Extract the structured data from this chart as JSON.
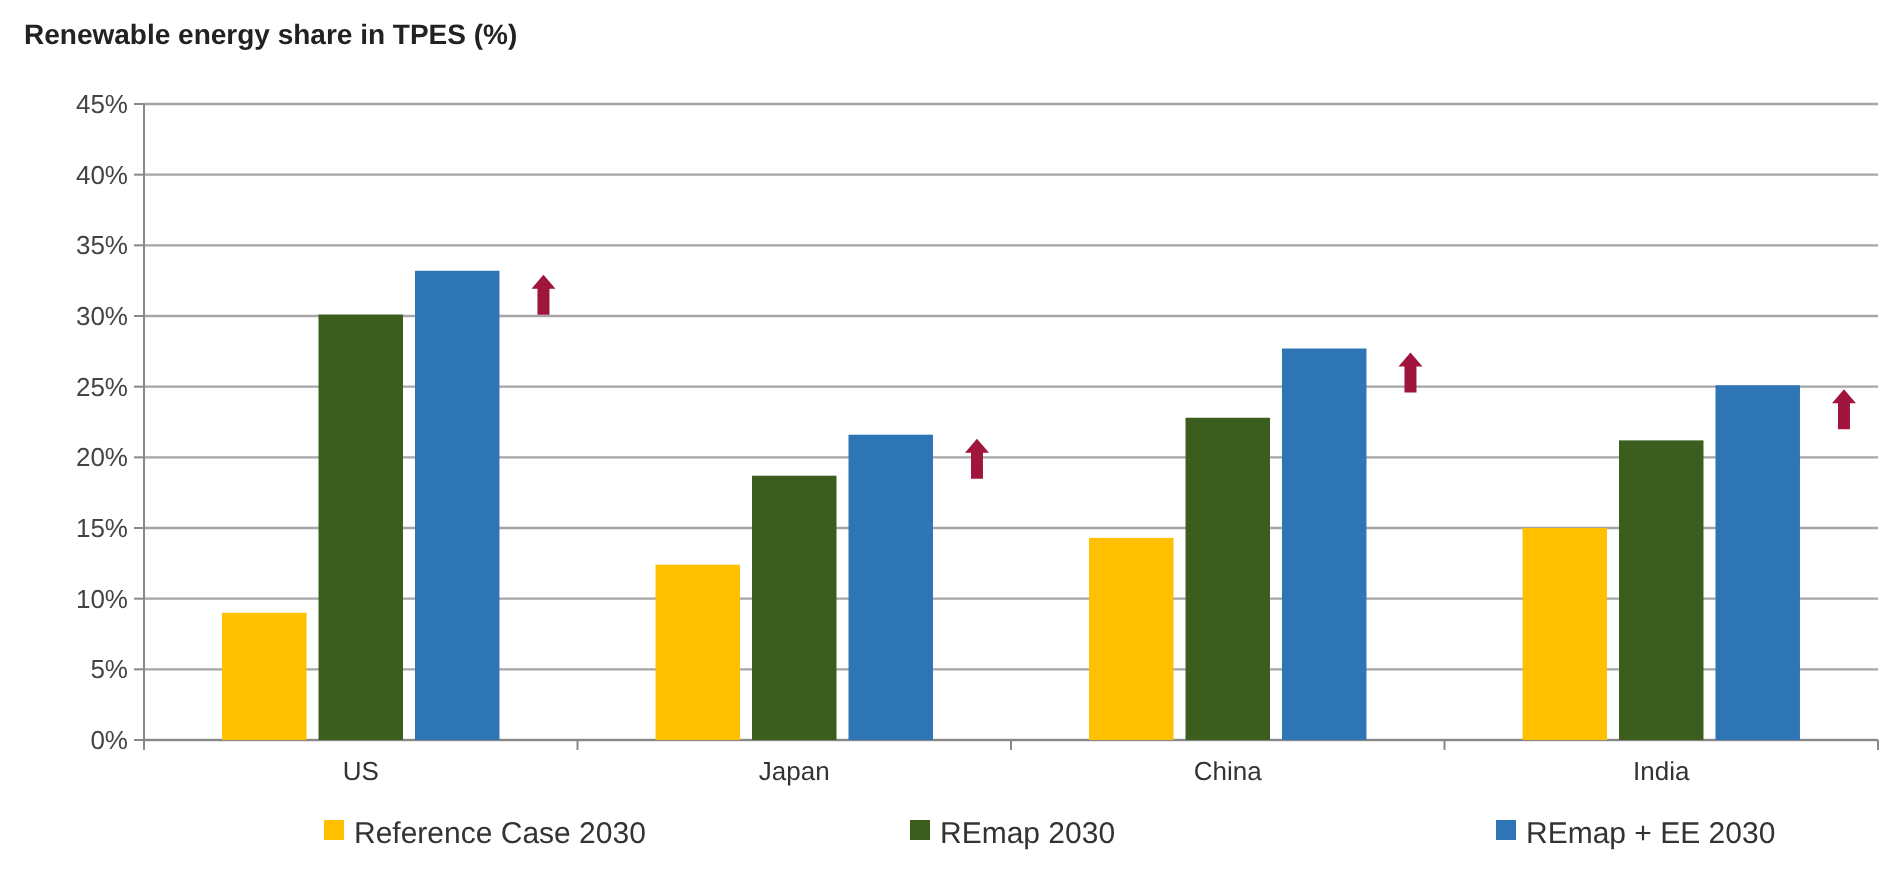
{
  "chart_data": {
    "type": "bar",
    "title": "Renewable energy share in TPES (%)",
    "categories": [
      "US",
      "Japan",
      "China",
      "India"
    ],
    "series": [
      {
        "name": "Reference Case 2030",
        "color": "#ffc000",
        "values": [
          9.0,
          12.4,
          14.3,
          15.0
        ]
      },
      {
        "name": "REmap 2030",
        "color": "#3b5e1f",
        "values": [
          30.1,
          18.7,
          22.8,
          21.2
        ]
      },
      {
        "name": "REmap + EE 2030",
        "color": "#2e75b6",
        "values": [
          33.2,
          21.6,
          27.7,
          25.1
        ]
      }
    ],
    "ylim": [
      0,
      45
    ],
    "yticks": [
      {
        "value": 0,
        "label": "0%"
      },
      {
        "value": 5,
        "label": "5%"
      },
      {
        "value": 10,
        "label": "10%"
      },
      {
        "value": 15,
        "label": "15%"
      },
      {
        "value": 20,
        "label": "20%"
      },
      {
        "value": 25,
        "label": "25%"
      },
      {
        "value": 30,
        "label": "30%"
      },
      {
        "value": 35,
        "label": "35%"
      },
      {
        "value": 40,
        "label": "40%"
      },
      {
        "value": 45,
        "label": "45%"
      }
    ],
    "grid": "y",
    "legend": "bottom"
  }
}
